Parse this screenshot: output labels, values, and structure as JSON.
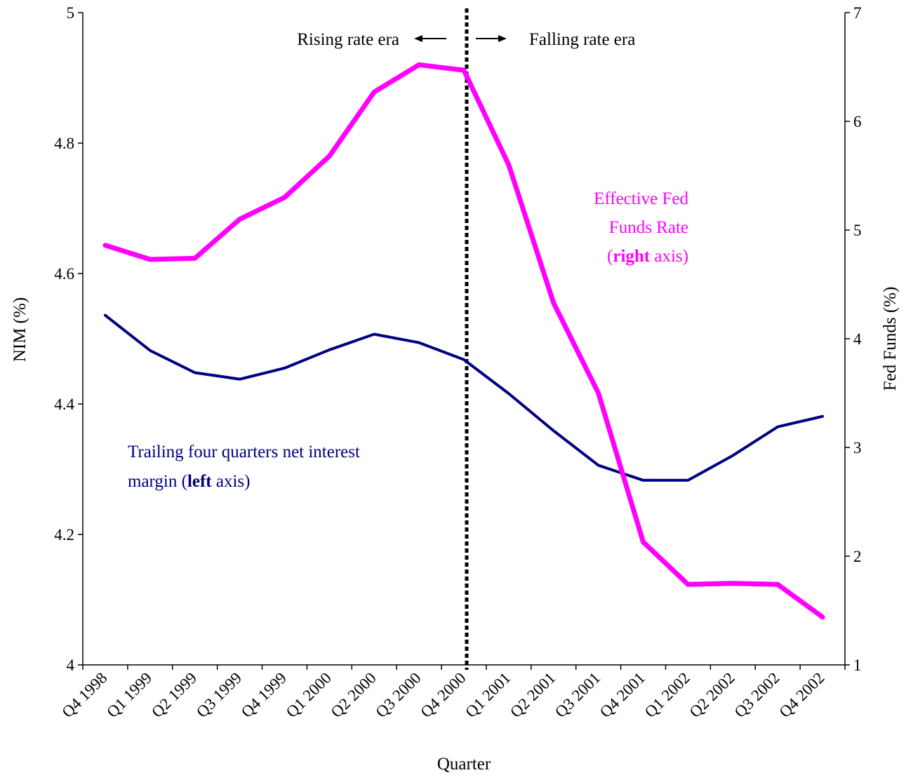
{
  "chart_data": {
    "type": "line",
    "categories": [
      "Q4 1998",
      "Q1 1999",
      "Q2 1999",
      "Q3 1999",
      "Q4 1999",
      "Q1 2000",
      "Q2 2000",
      "Q3 2000",
      "Q4 2000",
      "Q1 2001",
      "Q2 2001",
      "Q3 2001",
      "Q4 2001",
      "Q1 2002",
      "Q2 2002",
      "Q3 2002",
      "Q4 2002"
    ],
    "xlabel": "Quarter",
    "ylabel_left": "NIM (%)",
    "ylabel_right": "Fed Funds (%)",
    "ylim_left": [
      4,
      5
    ],
    "ylim_right": [
      1,
      7
    ],
    "yticks_left": [
      "4",
      "4.2",
      "4.4",
      "4.6",
      "4.8",
      "5"
    ],
    "yticks_right": [
      "1",
      "2",
      "3",
      "4",
      "5",
      "6",
      "7"
    ],
    "grid": false,
    "series": [
      {
        "axis": "left",
        "color": "#000080",
        "values": [
          4.536,
          4.482,
          4.448,
          4.438,
          4.455,
          4.483,
          4.507,
          4.494,
          4.468,
          4.416,
          4.359,
          4.306,
          4.283,
          4.283,
          4.321,
          4.365,
          4.381
        ]
      },
      {
        "axis": "right",
        "color": "#ff00ff",
        "values": [
          4.86,
          4.73,
          4.74,
          5.1,
          5.3,
          5.68,
          6.27,
          6.52,
          6.47,
          5.6,
          4.33,
          3.5,
          2.13,
          1.74,
          1.75,
          1.74,
          1.44
        ]
      }
    ],
    "divider_after_category": "Q4 2000",
    "annotations": {
      "rising": "Rising rate era",
      "falling": "Falling rate era",
      "fed_line1": "Effective Fed",
      "fed_line2": "Funds Rate",
      "fed_line3_open": "(",
      "fed_line3_bold": "right",
      "fed_line3_rest": " axis)",
      "nim_line1": "Trailing four quarters net interest",
      "nim_line2_pre": "margin  (",
      "nim_line2_bold": "left",
      "nim_line2_rest": " axis)"
    }
  }
}
